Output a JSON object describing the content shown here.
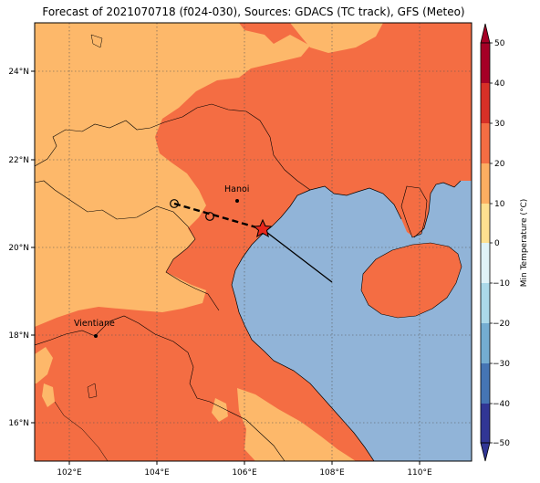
{
  "title": "Forecast of 2021070718 (f024-030), Sources: GDACS (TC track), GFS (Meteo)",
  "map": {
    "lat_ticks": [
      "24°N",
      "22°N",
      "20°N",
      "18°N",
      "16°N"
    ],
    "lon_ticks": [
      "102°E",
      "104°E",
      "106°E",
      "108°E",
      "110°E"
    ],
    "cities": [
      {
        "name": "Hanoi"
      },
      {
        "name": "Vientiane"
      }
    ],
    "grid": true
  },
  "colorbar": {
    "label": "Min Temperature (°C)",
    "ticks": [
      "50",
      "40",
      "30",
      "20",
      "10",
      "0",
      "−10",
      "−20",
      "−30",
      "−40",
      "−50"
    ],
    "colors": {
      "40_50": "#a50026",
      "30_40": "#d73027",
      "20_30": "#f46d43",
      "10_20": "#fdae61",
      "0_10": "#fee090",
      "-10_0": "#e0f3f8",
      "-20_-10": "#abd9e9",
      "-30_-20": "#74add1",
      "-40_-30": "#4575b4",
      "-50_-40": "#313695"
    }
  },
  "palette": {
    "sea": "#91b4d8",
    "warm": "#f46d43",
    "mild": "#fdb86a"
  },
  "track": {
    "start_lat": 21.0,
    "start_lon": 104.4,
    "current_lat": 20.4,
    "current_lon": 106.4,
    "end_lat": 19.2,
    "end_lon": 108.0
  }
}
